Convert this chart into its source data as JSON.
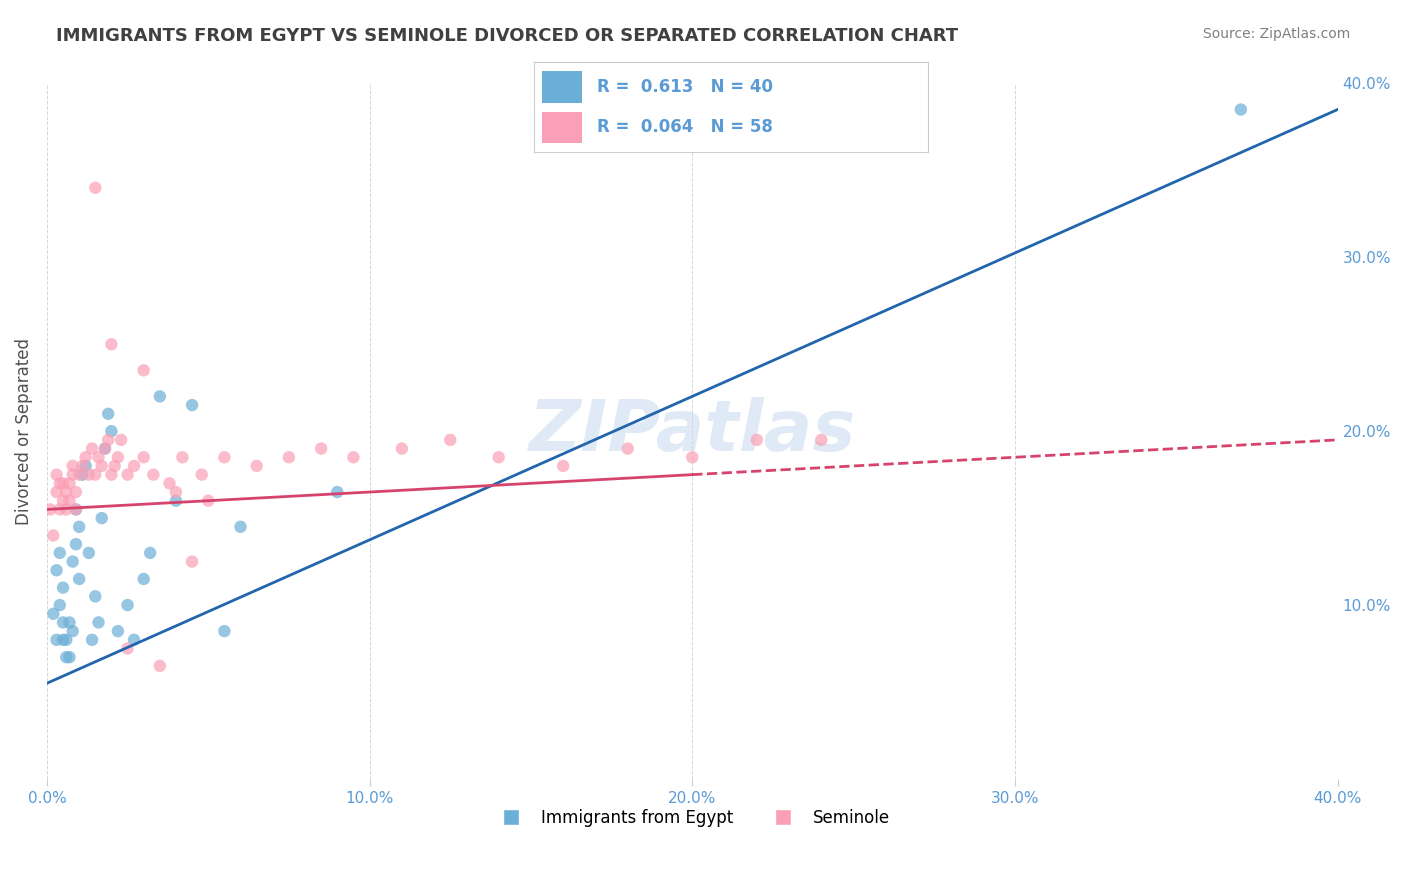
{
  "title": "IMMIGRANTS FROM EGYPT VS SEMINOLE DIVORCED OR SEPARATED CORRELATION CHART",
  "source_text": "Source: ZipAtlas.com",
  "ylabel": "Divorced or Separated",
  "xlim": [
    0.0,
    0.4
  ],
  "ylim": [
    0.0,
    0.4
  ],
  "xtick_vals": [
    0.0,
    0.1,
    0.2,
    0.3,
    0.4
  ],
  "ytick_vals_right": [
    0.1,
    0.2,
    0.3,
    0.4
  ],
  "watermark": "ZIPatlas",
  "legend_blue_r": "0.613",
  "legend_blue_n": "40",
  "legend_pink_r": "0.064",
  "legend_pink_n": "58",
  "legend_label_blue": "Immigrants from Egypt",
  "legend_label_pink": "Seminole",
  "blue_color": "#6baed6",
  "pink_color": "#fa9fb5",
  "line_blue_color": "#2166ac",
  "line_pink_color": "#d6446e",
  "blue_scatter_x": [
    0.002,
    0.003,
    0.003,
    0.004,
    0.004,
    0.005,
    0.005,
    0.005,
    0.006,
    0.006,
    0.007,
    0.007,
    0.008,
    0.008,
    0.009,
    0.009,
    0.01,
    0.01,
    0.011,
    0.012,
    0.013,
    0.014,
    0.015,
    0.016,
    0.017,
    0.018,
    0.019,
    0.02,
    0.022,
    0.025,
    0.027,
    0.03,
    0.032,
    0.035,
    0.04,
    0.045,
    0.055,
    0.06,
    0.09,
    0.37
  ],
  "blue_scatter_y": [
    0.095,
    0.12,
    0.08,
    0.13,
    0.1,
    0.08,
    0.09,
    0.11,
    0.08,
    0.07,
    0.07,
    0.09,
    0.085,
    0.125,
    0.135,
    0.155,
    0.115,
    0.145,
    0.175,
    0.18,
    0.13,
    0.08,
    0.105,
    0.09,
    0.15,
    0.19,
    0.21,
    0.2,
    0.085,
    0.1,
    0.08,
    0.115,
    0.13,
    0.22,
    0.16,
    0.215,
    0.085,
    0.145,
    0.165,
    0.385
  ],
  "pink_scatter_x": [
    0.001,
    0.002,
    0.003,
    0.003,
    0.004,
    0.004,
    0.005,
    0.005,
    0.006,
    0.006,
    0.007,
    0.007,
    0.008,
    0.008,
    0.009,
    0.009,
    0.01,
    0.011,
    0.012,
    0.013,
    0.014,
    0.015,
    0.016,
    0.017,
    0.018,
    0.019,
    0.02,
    0.021,
    0.022,
    0.023,
    0.025,
    0.027,
    0.03,
    0.033,
    0.038,
    0.042,
    0.048,
    0.055,
    0.065,
    0.075,
    0.085,
    0.095,
    0.11,
    0.125,
    0.14,
    0.16,
    0.18,
    0.2,
    0.22,
    0.24,
    0.015,
    0.02,
    0.025,
    0.03,
    0.035,
    0.04,
    0.045,
    0.05
  ],
  "pink_scatter_y": [
    0.155,
    0.14,
    0.175,
    0.165,
    0.17,
    0.155,
    0.16,
    0.17,
    0.155,
    0.165,
    0.16,
    0.17,
    0.175,
    0.18,
    0.155,
    0.165,
    0.175,
    0.18,
    0.185,
    0.175,
    0.19,
    0.175,
    0.185,
    0.18,
    0.19,
    0.195,
    0.175,
    0.18,
    0.185,
    0.195,
    0.175,
    0.18,
    0.185,
    0.175,
    0.17,
    0.185,
    0.175,
    0.185,
    0.18,
    0.185,
    0.19,
    0.185,
    0.19,
    0.195,
    0.185,
    0.18,
    0.19,
    0.185,
    0.195,
    0.195,
    0.34,
    0.25,
    0.075,
    0.235,
    0.065,
    0.165,
    0.125,
    0.16
  ],
  "blue_line_x": [
    0.0,
    0.4
  ],
  "blue_line_y": [
    0.055,
    0.385
  ],
  "pink_line_x": [
    0.0,
    0.4
  ],
  "pink_line_y": [
    0.155,
    0.195
  ],
  "pink_line_dashed_start": 0.2,
  "grid_color": "#cccccc",
  "bg_color": "#ffffff",
  "title_color": "#404040",
  "axis_color": "#5b9bd5"
}
